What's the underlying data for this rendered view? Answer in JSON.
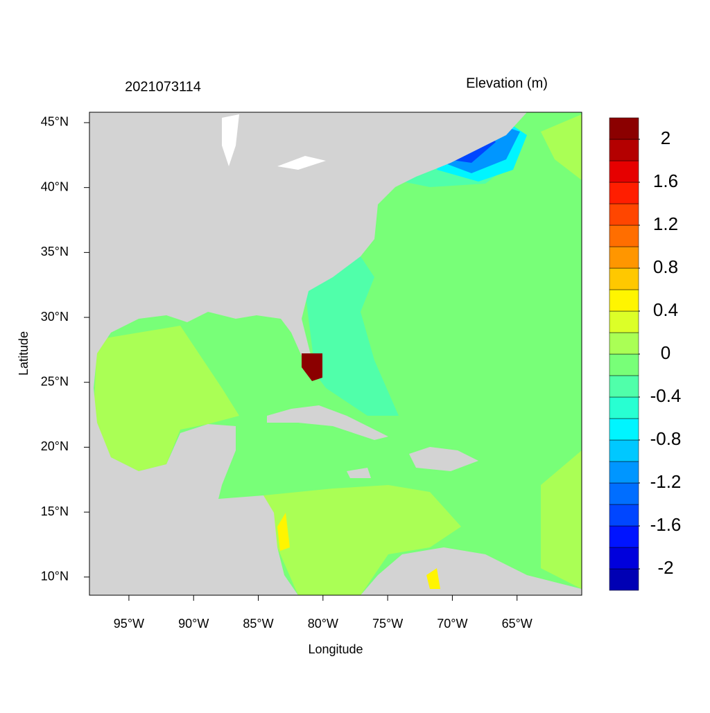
{
  "chart_data": {
    "type": "map",
    "title": "2021073114",
    "subtitle": "Elevation (m)",
    "x_label": "Longitude",
    "y_label": "Latitude",
    "xlim": [
      -98.05,
      -60
    ],
    "ylim": [
      8.6,
      45.8
    ],
    "xticks": [
      {
        "value": -95,
        "label": "95°W"
      },
      {
        "value": -90,
        "label": "90°W"
      },
      {
        "value": -85,
        "label": "85°W"
      },
      {
        "value": -80,
        "label": "80°W"
      },
      {
        "value": -75,
        "label": "75°W"
      },
      {
        "value": -70,
        "label": "70°W"
      },
      {
        "value": -65,
        "label": "65°W"
      }
    ],
    "yticks": [
      {
        "value": 10,
        "label": "10°N"
      },
      {
        "value": 15,
        "label": "15°N"
      },
      {
        "value": 20,
        "label": "20°N"
      },
      {
        "value": 25,
        "label": "25°N"
      },
      {
        "value": 30,
        "label": "30°N"
      },
      {
        "value": 35,
        "label": "35°N"
      },
      {
        "value": 40,
        "label": "40°N"
      },
      {
        "value": 45,
        "label": "45°N"
      }
    ],
    "colorbar": {
      "clim": [
        -2.2,
        2.2
      ],
      "colors": [
        "#0000B4",
        "#0000DC",
        "#0014FF",
        "#0046FF",
        "#006EFF",
        "#0096FF",
        "#00C8FF",
        "#00F5FF",
        "#28FFD2",
        "#50FFAA",
        "#78FF78",
        "#AAFF55",
        "#DCFF28",
        "#FFF500",
        "#FFC800",
        "#FF9600",
        "#FF6E00",
        "#FF4600",
        "#FF1E00",
        "#E60000",
        "#B40000",
        "#8B0000"
      ],
      "ticks": [
        -2,
        -1.6,
        -1.2,
        -0.8,
        -0.4,
        0,
        0.4,
        0.8,
        1.2,
        1.6,
        2
      ]
    }
  }
}
